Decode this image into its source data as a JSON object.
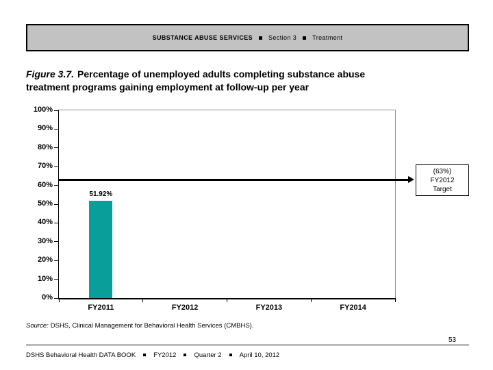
{
  "header": {
    "section_services": "SUBSTANCE ABUSE SERVICES",
    "section": "Section 3",
    "topic": "Treatment"
  },
  "title": {
    "figure_label": "Figure 3.7.",
    "line1": "Percentage of unemployed adults completing substance abuse",
    "line2": "treatment programs gaining employment at follow-up per year"
  },
  "chart_data": {
    "type": "bar",
    "title": "Percentage of unemployed adults completing substance abuse treatment programs gaining employment at follow-up per year",
    "categories": [
      "FY2011",
      "FY2012",
      "FY2013",
      "FY2014"
    ],
    "values": [
      51.92,
      null,
      null,
      null
    ],
    "bar_labels": [
      "51.92%"
    ],
    "xlabel": "",
    "ylabel": "",
    "ylim": [
      0,
      100
    ],
    "y_ticks": [
      0,
      10,
      20,
      30,
      40,
      50,
      60,
      70,
      80,
      90,
      100
    ],
    "y_tick_labels": [
      "0%",
      "10%",
      "20%",
      "30%",
      "40%",
      "50%",
      "60%",
      "70%",
      "80%",
      "90%",
      "100%"
    ],
    "grid": false,
    "legend": false,
    "bar_color": "#0a9e9a",
    "target": {
      "value": 63,
      "label_lines": [
        "(63%)",
        "FY2012",
        "Target"
      ]
    }
  },
  "source_note": {
    "prefix": "Source:",
    "text": "DSHS, Clinical Management for Behavioral Health Services (CMBHS)."
  },
  "page_number": "53",
  "footer": {
    "items": [
      "DSHS Behavioral Health DATA BOOK",
      "FY2012",
      "Quarter 2",
      "April 10, 2012"
    ]
  },
  "colors": {
    "bar": "#0a9e9a",
    "header_bg": "#c2c2c2",
    "plot_border_gray": "#909090",
    "target_line": "#000000"
  }
}
